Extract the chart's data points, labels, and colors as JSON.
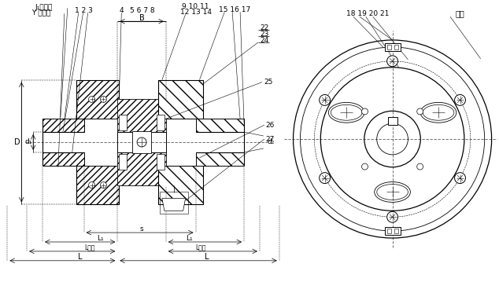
{
  "bg_color": "#ffffff",
  "fig_width": 6.34,
  "fig_height": 3.59,
  "dpi": 100,
  "labels": {
    "J1_label": "J₁型轴孔",
    "Y_label": "Y 型轴孔",
    "nums_123": "1 2 3",
    "num_4": "4",
    "nums_5678": "5 6 7 8",
    "nums_91011": "9 10 11",
    "nums_121314": "12 13 14",
    "nums_151617": "15 16 17",
    "B_label": "B",
    "num_22": "22",
    "num_23": "23",
    "num_24": "24",
    "num_25": "25",
    "d2_label": "d₂",
    "num_26": "26",
    "num_27": "27",
    "D_label": "D",
    "d1_label": "d₁",
    "L1_label": "L₁",
    "s_label": "s",
    "Lrec_label": "L推荐",
    "L_label": "L",
    "nums_181920_21": "18 19 20 21",
    "biaozhi": "标志"
  }
}
